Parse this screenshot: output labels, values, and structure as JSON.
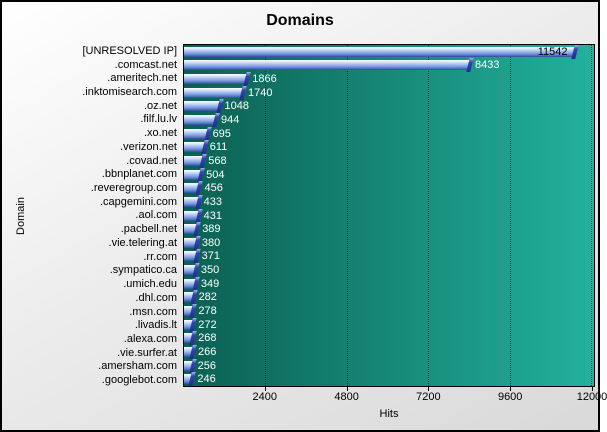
{
  "chart_data": {
    "type": "bar",
    "orientation": "horizontal",
    "title": "Domains",
    "xlabel": "Hits",
    "ylabel": "Domain",
    "xlim": [
      0,
      12088
    ],
    "xticks": [
      2400,
      4800,
      7200,
      9600,
      12000
    ],
    "grid": "vertical-dotted",
    "legend": "none",
    "categories": [
      "[UNRESOLVED IP]",
      ".comcast.net",
      ".ameritech.net",
      ".inktomisearch.com",
      ".oz.net",
      ".filf.lu.lv",
      ".xo.net",
      ".verizon.net",
      ".covad.net",
      ".bbnplanet.com",
      ".reveregroup.com",
      ".capgemini.com",
      ".aol.com",
      ".pacbell.net",
      ".vie.telering.at",
      ".rr.com",
      ".sympatico.ca",
      ".umich.edu",
      ".dhl.com",
      ".msn.com",
      ".livadis.lt",
      ".alexa.com",
      ".vie.surfer.at",
      ".amersham.com",
      ".googlebot.com"
    ],
    "values": [
      11542,
      8433,
      1866,
      1740,
      1048,
      944,
      695,
      611,
      568,
      504,
      456,
      433,
      431,
      389,
      380,
      371,
      350,
      349,
      282,
      278,
      272,
      268,
      266,
      256,
      246
    ],
    "colors": {
      "plot_bg_left": "#0b6052",
      "plot_bg_right": "#22b19d",
      "bar_light": "#dde9fb",
      "bar_mid": "#7b9ede",
      "bar_dark": "#31499a",
      "bar_cap": "#1c2d8a",
      "value_label_outside": "#ffffff",
      "value_label_inside": "#000000",
      "text": "#000000"
    }
  }
}
